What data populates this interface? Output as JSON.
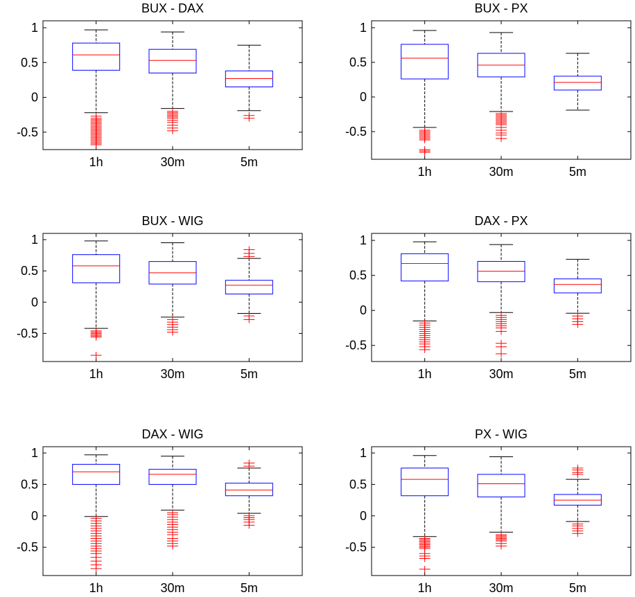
{
  "colors": {
    "box": "#0000ff",
    "median": "#ff0000",
    "whisker": "#000000",
    "outlier": "#ff0000",
    "axes": "#000000"
  },
  "chart_data": [
    {
      "type": "box",
      "title": "BUX - DAX",
      "categories": [
        "1h",
        "30m",
        "5m"
      ],
      "ylim": [
        -0.75,
        1.1
      ],
      "yticks": [
        1,
        0.5,
        0,
        -0.5
      ],
      "ytick_labels": [
        "1",
        "0.5",
        "0",
        "-0.5"
      ],
      "boxes": [
        {
          "whisker_high": 0.97,
          "q3": 0.78,
          "median": 0.61,
          "q1": 0.39,
          "whisker_low": -0.22,
          "outliers": [
            -0.27,
            -0.3,
            -0.32,
            -0.34,
            -0.36,
            -0.38,
            -0.4,
            -0.42,
            -0.44,
            -0.46,
            -0.48,
            -0.5,
            -0.52,
            -0.54,
            -0.56,
            -0.58,
            -0.6,
            -0.62,
            -0.64,
            -0.66,
            -0.68
          ]
        },
        {
          "whisker_high": 0.94,
          "q3": 0.69,
          "median": 0.53,
          "q1": 0.35,
          "whisker_low": -0.16,
          "outliers": [
            -0.2,
            -0.22,
            -0.24,
            -0.26,
            -0.28,
            -0.3,
            -0.33,
            -0.36,
            -0.4,
            -0.44,
            -0.48
          ]
        },
        {
          "whisker_high": 0.75,
          "q3": 0.38,
          "median": 0.27,
          "q1": 0.15,
          "whisker_low": -0.19,
          "outliers": [
            -0.26,
            -0.3
          ]
        }
      ]
    },
    {
      "type": "box",
      "title": "BUX - PX",
      "categories": [
        "1h",
        "30m",
        "5m"
      ],
      "ylim": [
        -0.9,
        1.1
      ],
      "yticks": [
        1,
        0.5,
        0,
        -0.5
      ],
      "ytick_labels": [
        "1",
        "0.5",
        "0",
        "-0.5"
      ],
      "boxes": [
        {
          "whisker_high": 0.96,
          "q3": 0.76,
          "median": 0.56,
          "q1": 0.26,
          "whisker_low": -0.44,
          "outliers": [
            -0.48,
            -0.5,
            -0.52,
            -0.54,
            -0.56,
            -0.58,
            -0.6,
            -0.62,
            -0.76,
            -0.78,
            -0.8
          ]
        },
        {
          "whisker_high": 0.93,
          "q3": 0.63,
          "median": 0.46,
          "q1": 0.29,
          "whisker_low": -0.21,
          "outliers": [
            -0.24,
            -0.26,
            -0.28,
            -0.3,
            -0.32,
            -0.34,
            -0.36,
            -0.38,
            -0.4,
            -0.44,
            -0.48,
            -0.52,
            -0.55,
            -0.6
          ]
        },
        {
          "whisker_high": 0.63,
          "q3": 0.3,
          "median": 0.21,
          "q1": 0.1,
          "whisker_low": -0.19,
          "outliers": []
        }
      ]
    },
    {
      "type": "box",
      "title": "BUX - WIG",
      "categories": [
        "1h",
        "30m",
        "5m"
      ],
      "ylim": [
        -0.95,
        1.1
      ],
      "yticks": [
        1,
        0.5,
        0,
        -0.5
      ],
      "ytick_labels": [
        "1",
        "0.5",
        "0",
        "-0.5"
      ],
      "boxes": [
        {
          "whisker_high": 0.98,
          "q3": 0.76,
          "median": 0.58,
          "q1": 0.31,
          "whisker_low": -0.42,
          "outliers": [
            -0.46,
            -0.48,
            -0.5,
            -0.52,
            -0.54,
            -0.56,
            -0.85
          ]
        },
        {
          "whisker_high": 0.95,
          "q3": 0.65,
          "median": 0.47,
          "q1": 0.29,
          "whisker_low": -0.24,
          "outliers": [
            -0.28,
            -0.32,
            -0.36,
            -0.4,
            -0.44,
            -0.48
          ]
        },
        {
          "whisker_high": 0.7,
          "q3": 0.35,
          "median": 0.27,
          "q1": 0.13,
          "whisker_low": -0.18,
          "outliers": [
            0.73,
            0.78,
            0.84,
            -0.22,
            -0.28
          ]
        }
      ]
    },
    {
      "type": "box",
      "title": "DAX - PX",
      "categories": [
        "1h",
        "30m",
        "5m"
      ],
      "ylim": [
        -0.73,
        1.1
      ],
      "yticks": [
        1,
        0.5,
        0,
        -0.5
      ],
      "ytick_labels": [
        "1",
        "0.5",
        "0",
        "-0.5"
      ],
      "boxes": [
        {
          "whisker_high": 0.98,
          "q3": 0.81,
          "median": 0.67,
          "q1": 0.42,
          "whisker_low": -0.15,
          "outliers": [
            -0.18,
            -0.21,
            -0.24,
            -0.27,
            -0.3,
            -0.33,
            -0.36,
            -0.39,
            -0.42,
            -0.45,
            -0.48,
            -0.52,
            -0.56
          ]
        },
        {
          "whisker_high": 0.94,
          "q3": 0.7,
          "median": 0.56,
          "q1": 0.41,
          "whisker_low": -0.03,
          "outliers": [
            -0.07,
            -0.1,
            -0.13,
            -0.16,
            -0.19,
            -0.22,
            -0.25,
            -0.3,
            -0.47,
            -0.52,
            -0.62
          ]
        },
        {
          "whisker_high": 0.73,
          "q3": 0.45,
          "median": 0.37,
          "q1": 0.25,
          "whisker_low": -0.04,
          "outliers": [
            -0.08,
            -0.12,
            -0.16,
            -0.2
          ]
        }
      ]
    },
    {
      "type": "box",
      "title": "DAX - WIG",
      "categories": [
        "1h",
        "30m",
        "5m"
      ],
      "ylim": [
        -0.95,
        1.1
      ],
      "yticks": [
        1,
        0.5,
        0,
        -0.5
      ],
      "ytick_labels": [
        "1",
        "0.5",
        "0",
        "-0.5"
      ],
      "boxes": [
        {
          "whisker_high": 0.97,
          "q3": 0.82,
          "median": 0.7,
          "q1": 0.5,
          "whisker_low": -0.01,
          "outliers": [
            -0.04,
            -0.08,
            -0.12,
            -0.16,
            -0.2,
            -0.24,
            -0.28,
            -0.32,
            -0.36,
            -0.4,
            -0.44,
            -0.48,
            -0.52,
            -0.56,
            -0.6,
            -0.66,
            -0.72,
            -0.78,
            -0.84
          ]
        },
        {
          "whisker_high": 0.95,
          "q3": 0.74,
          "median": 0.66,
          "q1": 0.5,
          "whisker_low": 0.09,
          "outliers": [
            0.05,
            0.02,
            -0.02,
            -0.06,
            -0.1,
            -0.14,
            -0.18,
            -0.22,
            -0.26,
            -0.3,
            -0.36,
            -0.4,
            -0.44,
            -0.48
          ]
        },
        {
          "whisker_high": 0.76,
          "q3": 0.52,
          "median": 0.41,
          "q1": 0.32,
          "whisker_low": 0.04,
          "outliers": [
            0.79,
            0.84,
            0.0,
            -0.03,
            -0.06,
            -0.1,
            -0.15
          ]
        }
      ]
    },
    {
      "type": "box",
      "title": "PX - WIG",
      "categories": [
        "1h",
        "30m",
        "5m"
      ],
      "ylim": [
        -0.95,
        1.1
      ],
      "yticks": [
        1,
        0.5,
        0,
        -0.5
      ],
      "ytick_labels": [
        "1",
        "0.5",
        "0",
        "-0.5"
      ],
      "boxes": [
        {
          "whisker_high": 0.96,
          "q3": 0.76,
          "median": 0.58,
          "q1": 0.32,
          "whisker_low": -0.33,
          "outliers": [
            -0.36,
            -0.38,
            -0.4,
            -0.42,
            -0.44,
            -0.46,
            -0.48,
            -0.5,
            -0.52,
            -0.6,
            -0.64,
            -0.68,
            -0.85
          ]
        },
        {
          "whisker_high": 0.94,
          "q3": 0.66,
          "median": 0.51,
          "q1": 0.3,
          "whisker_low": -0.26,
          "outliers": [
            -0.3,
            -0.32,
            -0.34,
            -0.36,
            -0.38,
            -0.4,
            -0.44,
            -0.48
          ]
        },
        {
          "whisker_high": 0.58,
          "q3": 0.34,
          "median": 0.25,
          "q1": 0.17,
          "whisker_low": -0.09,
          "outliers": [
            0.66,
            0.69,
            0.73,
            0.76,
            -0.13,
            -0.16,
            -0.2,
            -0.24,
            -0.28
          ]
        }
      ]
    }
  ]
}
